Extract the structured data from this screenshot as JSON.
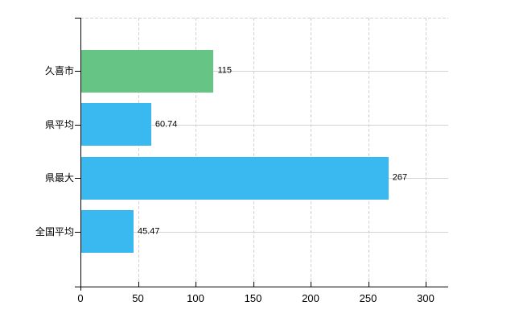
{
  "chart_data": {
    "type": "bar",
    "orientation": "horizontal",
    "title": "",
    "categories": [
      "久喜市",
      "県平均",
      "県最大",
      "全国平均"
    ],
    "values": [
      115,
      60.74,
      267,
      45.47
    ],
    "value_labels": [
      "115",
      "60.74",
      "267",
      "45.47"
    ],
    "series": [
      {
        "name": "",
        "values": [
          115,
          60.74,
          267,
          45.47
        ]
      }
    ],
    "bar_colors": [
      "#66c585",
      "#3ab9f0",
      "#3ab9f0",
      "#3ab9f0"
    ],
    "x_ticks": [
      0,
      50,
      100,
      150,
      200,
      250,
      300
    ],
    "x_tick_labels": [
      "0",
      "50",
      "100",
      "150",
      "200",
      "250",
      "300"
    ],
    "xlim": [
      0,
      319
    ],
    "ylabel": "",
    "xlabel": "",
    "grid": true,
    "legend": "none",
    "background_color": "#ffffff",
    "axis_color": "#000000",
    "gridline_color": "#d6d3ce",
    "text_color": "#000000"
  }
}
